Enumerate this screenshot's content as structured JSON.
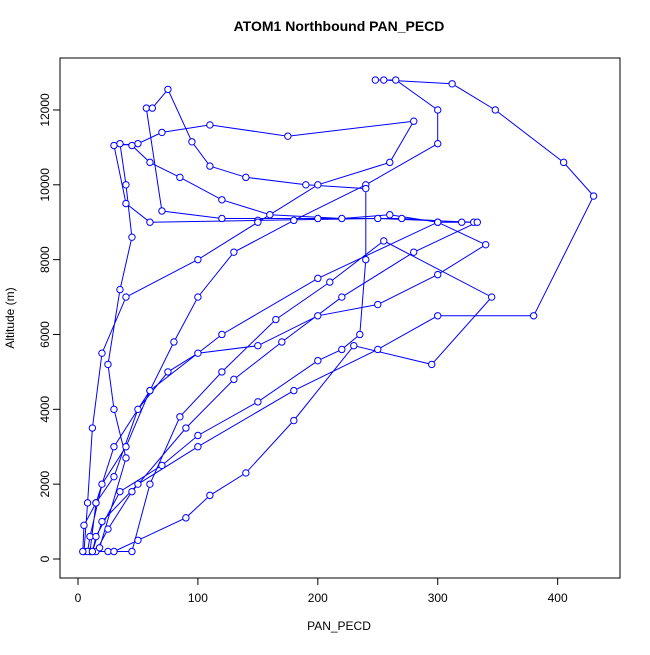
{
  "chart_data": {
    "type": "line-points",
    "title": "ATOM1 Northbound PAN_PECD",
    "x_label": "PAN_PECD",
    "y_label": "Altitude (m)",
    "color": "#0000ff",
    "xlim": [
      -15,
      452
    ],
    "ylim": [
      -508,
      13389
    ],
    "xticks": [
      0,
      100,
      200,
      300,
      400
    ],
    "yticks": [
      0,
      2000,
      4000,
      6000,
      8000,
      10000,
      12000
    ],
    "x": [
      10,
      15,
      30,
      60,
      120,
      200,
      300,
      330,
      250,
      150,
      60,
      40,
      30,
      50,
      70,
      110,
      175,
      280,
      260,
      200,
      150,
      100,
      40,
      20,
      12,
      8,
      5,
      12,
      20,
      50,
      100,
      180,
      250,
      300,
      380,
      430,
      405,
      348,
      312,
      255,
      248,
      265,
      300,
      300,
      240,
      180,
      130,
      100,
      80,
      60,
      40,
      20,
      10,
      8,
      15,
      25,
      45,
      90,
      130,
      170,
      220,
      280,
      333,
      320,
      270,
      200,
      120,
      70,
      57,
      62,
      75,
      95,
      110,
      140,
      190,
      240,
      240,
      235,
      220,
      200,
      150,
      100,
      70,
      35,
      15,
      12,
      18,
      40,
      30,
      25,
      35,
      45,
      40,
      35,
      45,
      60,
      85,
      120,
      160,
      220,
      260,
      300,
      340,
      300,
      250,
      200,
      150,
      100,
      75,
      50,
      30,
      15,
      5,
      4,
      25,
      45,
      60,
      85,
      120,
      165,
      210,
      255,
      345,
      295,
      230,
      180,
      140,
      110,
      90,
      50,
      30
    ],
    "values": [
      200,
      1500,
      3000,
      4500,
      6000,
      7500,
      9000,
      9000,
      9100,
      9050,
      9000,
      9500,
      11050,
      11100,
      11400,
      11600,
      11300,
      11700,
      10600,
      10000,
      9000,
      8000,
      7000,
      5500,
      3500,
      1500,
      200,
      200,
      1000,
      2000,
      3000,
      4500,
      5600,
      6500,
      6500,
      9700,
      10600,
      12000,
      12700,
      12800,
      12800,
      12800,
      12000,
      11100,
      10000,
      9050,
      8200,
      7000,
      5800,
      4500,
      3000,
      2000,
      600,
      200,
      200,
      800,
      1800,
      3500,
      4800,
      5800,
      7000,
      8200,
      9000,
      9000,
      9100,
      9100,
      9100,
      9300,
      12050,
      12050,
      12550,
      11150,
      10500,
      10200,
      10000,
      9900,
      8000,
      6000,
      5600,
      5300,
      4200,
      3300,
      2500,
      1800,
      600,
      200,
      300,
      2700,
      4000,
      5200,
      7200,
      8600,
      10000,
      11100,
      11050,
      10600,
      10200,
      9600,
      9200,
      9100,
      9200,
      9000,
      8400,
      7600,
      6800,
      6500,
      5700,
      5500,
      5000,
      4000,
      2200,
      1500,
      900,
      200,
      200,
      200,
      2000,
      3800,
      5000,
      6400,
      7400,
      8500,
      7000,
      5200,
      5700,
      3700,
      2300,
      1700,
      1100,
      500,
      200
    ]
  }
}
